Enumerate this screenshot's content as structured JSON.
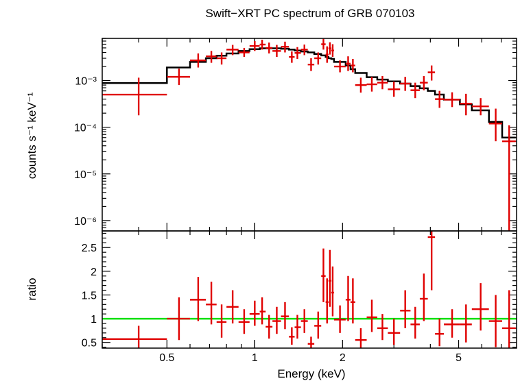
{
  "chart_data": [
    {
      "panel": "spectrum",
      "type": "scatter",
      "title": "Swift−XRT PC spectrum of GRB 070103",
      "ylabel": "counts s⁻¹ keV⁻¹",
      "x_scale": "log",
      "y_scale": "log",
      "xlim": [
        0.3,
        7.9
      ],
      "ylim": [
        6e-07,
        0.008
      ],
      "y_tick_labels": [
        "10⁻³",
        "10⁻⁴",
        "10⁻⁵",
        "10⁻⁶"
      ],
      "y_tick_values": [
        0.001,
        0.0001,
        1e-05,
        1e-06
      ],
      "series": [
        {
          "kind": "data_with_errors",
          "color": "#e00000",
          "points": [
            {
              "x": 0.4,
              "xlo": 0.3,
              "xhi": 0.5,
              "y": 0.0005,
              "ylo": 0.00018,
              "yhi": 0.00115
            },
            {
              "x": 0.55,
              "xlo": 0.5,
              "xhi": 0.6,
              "y": 0.0012,
              "ylo": 0.0008,
              "yhi": 0.0018
            },
            {
              "x": 0.64,
              "xlo": 0.6,
              "xhi": 0.68,
              "y": 0.0027,
              "ylo": 0.0019,
              "yhi": 0.0038
            },
            {
              "x": 0.71,
              "xlo": 0.68,
              "xhi": 0.74,
              "y": 0.0033,
              "ylo": 0.0024,
              "yhi": 0.0043
            },
            {
              "x": 0.77,
              "xlo": 0.74,
              "xhi": 0.8,
              "y": 0.003,
              "ylo": 0.0022,
              "yhi": 0.004
            },
            {
              "x": 0.84,
              "xlo": 0.8,
              "xhi": 0.88,
              "y": 0.0046,
              "ylo": 0.0035,
              "yhi": 0.0058
            },
            {
              "x": 0.92,
              "xlo": 0.88,
              "xhi": 0.96,
              "y": 0.004,
              "ylo": 0.0032,
              "yhi": 0.005
            },
            {
              "x": 1.0,
              "xlo": 0.96,
              "xhi": 1.04,
              "y": 0.0055,
              "ylo": 0.0043,
              "yhi": 0.007
            },
            {
              "x": 1.06,
              "xlo": 1.04,
              "xhi": 1.09,
              "y": 0.0059,
              "ylo": 0.0046,
              "yhi": 0.0075
            },
            {
              "x": 1.12,
              "xlo": 1.09,
              "xhi": 1.15,
              "y": 0.005,
              "ylo": 0.0038,
              "yhi": 0.0065
            },
            {
              "x": 1.19,
              "xlo": 1.15,
              "xhi": 1.23,
              "y": 0.0043,
              "ylo": 0.0032,
              "yhi": 0.0058
            },
            {
              "x": 1.27,
              "xlo": 1.23,
              "xhi": 1.31,
              "y": 0.0053,
              "ylo": 0.004,
              "yhi": 0.0068
            },
            {
              "x": 1.34,
              "xlo": 1.31,
              "xhi": 1.37,
              "y": 0.0032,
              "ylo": 0.0024,
              "yhi": 0.0042
            },
            {
              "x": 1.4,
              "xlo": 1.37,
              "xhi": 1.44,
              "y": 0.0039,
              "ylo": 0.0029,
              "yhi": 0.0052
            },
            {
              "x": 1.48,
              "xlo": 1.44,
              "xhi": 1.52,
              "y": 0.0046,
              "ylo": 0.0035,
              "yhi": 0.0059
            },
            {
              "x": 1.56,
              "xlo": 1.52,
              "xhi": 1.6,
              "y": 0.0022,
              "ylo": 0.0016,
              "yhi": 0.003
            },
            {
              "x": 1.65,
              "xlo": 1.6,
              "xhi": 1.69,
              "y": 0.003,
              "ylo": 0.0022,
              "yhi": 0.004
            },
            {
              "x": 1.72,
              "xlo": 1.69,
              "xhi": 1.75,
              "y": 0.006,
              "ylo": 0.0046,
              "yhi": 0.0078
            },
            {
              "x": 1.77,
              "xlo": 1.75,
              "xhi": 1.79,
              "y": 0.0036,
              "ylo": 0.0024,
              "yhi": 0.0054
            },
            {
              "x": 1.81,
              "xlo": 1.79,
              "xhi": 1.83,
              "y": 0.0049,
              "ylo": 0.0036,
              "yhi": 0.0066
            },
            {
              "x": 1.85,
              "xlo": 1.83,
              "xhi": 1.87,
              "y": 0.0044,
              "ylo": 0.0032,
              "yhi": 0.006
            },
            {
              "x": 1.96,
              "xlo": 1.87,
              "xhi": 2.05,
              "y": 0.002,
              "ylo": 0.0015,
              "yhi": 0.0027
            },
            {
              "x": 2.09,
              "xlo": 2.05,
              "xhi": 2.13,
              "y": 0.0023,
              "ylo": 0.0016,
              "yhi": 0.0033
            },
            {
              "x": 2.17,
              "xlo": 2.13,
              "xhi": 2.21,
              "y": 0.0021,
              "ylo": 0.0015,
              "yhi": 0.0029
            },
            {
              "x": 2.31,
              "xlo": 2.21,
              "xhi": 2.42,
              "y": 0.0008,
              "ylo": 0.00055,
              "yhi": 0.00115
            },
            {
              "x": 2.52,
              "xlo": 2.42,
              "xhi": 2.63,
              "y": 0.00083,
              "ylo": 0.00058,
              "yhi": 0.0012
            },
            {
              "x": 2.74,
              "xlo": 2.63,
              "xhi": 2.86,
              "y": 0.0009,
              "ylo": 0.00065,
              "yhi": 0.00125
            },
            {
              "x": 3.0,
              "xlo": 2.86,
              "xhi": 3.15,
              "y": 0.00065,
              "ylo": 0.00045,
              "yhi": 0.00095
            },
            {
              "x": 3.28,
              "xlo": 3.15,
              "xhi": 3.42,
              "y": 0.00086,
              "ylo": 0.0006,
              "yhi": 0.0012
            },
            {
              "x": 3.55,
              "xlo": 3.42,
              "xhi": 3.68,
              "y": 0.00062,
              "ylo": 0.00042,
              "yhi": 0.0009
            },
            {
              "x": 3.8,
              "xlo": 3.68,
              "xhi": 3.92,
              "y": 0.0009,
              "ylo": 0.00062,
              "yhi": 0.00125
            },
            {
              "x": 4.04,
              "xlo": 3.92,
              "xhi": 4.15,
              "y": 0.0015,
              "ylo": 0.001,
              "yhi": 0.0021
            },
            {
              "x": 4.3,
              "xlo": 4.15,
              "xhi": 4.45,
              "y": 0.0004,
              "ylo": 0.00026,
              "yhi": 0.0006
            },
            {
              "x": 4.75,
              "xlo": 4.45,
              "xhi": 5.05,
              "y": 0.00039,
              "ylo": 0.00027,
              "yhi": 0.00056
            },
            {
              "x": 5.3,
              "xlo": 5.05,
              "xhi": 5.55,
              "y": 0.00032,
              "ylo": 0.00018,
              "yhi": 0.00052
            },
            {
              "x": 5.95,
              "xlo": 5.55,
              "xhi": 6.35,
              "y": 0.00028,
              "ylo": 0.00018,
              "yhi": 0.00042
            },
            {
              "x": 6.7,
              "xlo": 6.35,
              "xhi": 7.05,
              "y": 0.00012,
              "ylo": 5e-05,
              "yhi": 0.00025
            },
            {
              "x": 7.45,
              "xlo": 7.05,
              "xhi": 7.85,
              "y": 5e-05,
              "ylo": 1e-07,
              "yhi": 0.00011
            }
          ]
        },
        {
          "kind": "model_step",
          "color": "#000000",
          "edges": [
            0.3,
            0.5,
            0.6,
            0.68,
            0.74,
            0.8,
            0.88,
            0.96,
            1.04,
            1.09,
            1.15,
            1.23,
            1.31,
            1.37,
            1.44,
            1.52,
            1.6,
            1.69,
            1.75,
            1.79,
            1.83,
            1.87,
            2.05,
            2.13,
            2.21,
            2.42,
            2.63,
            2.86,
            3.15,
            3.42,
            3.68,
            3.92,
            4.15,
            4.45,
            5.05,
            5.55,
            6.35,
            7.05,
            7.85
          ],
          "values": [
            0.00088,
            0.0019,
            0.0025,
            0.003,
            0.0034,
            0.0038,
            0.0043,
            0.0047,
            0.0049,
            0.0049,
            0.0049,
            0.0048,
            0.0046,
            0.0044,
            0.0042,
            0.004,
            0.0037,
            0.00345,
            0.0032,
            0.003,
            0.0029,
            0.0025,
            0.0021,
            0.00175,
            0.00145,
            0.00118,
            0.00105,
            0.00096,
            0.00086,
            0.00076,
            0.00068,
            0.0006,
            0.0005,
            0.00039,
            0.00031,
            0.00023,
            0.00013,
            6e-05
          ]
        }
      ]
    },
    {
      "panel": "ratio",
      "type": "scatter",
      "xlabel": "Energy (keV)",
      "ylabel": "ratio",
      "x_scale": "log",
      "xlim": [
        0.3,
        7.9
      ],
      "ylim": [
        0.38,
        2.85
      ],
      "x_tick_labels": [
        "0.5",
        "1",
        "2",
        "5"
      ],
      "x_tick_values": [
        0.5,
        1,
        2,
        5
      ],
      "y_tick_labels": [
        "0.5",
        "1",
        "1.5",
        "2",
        "2.5"
      ],
      "y_tick_values": [
        0.5,
        1,
        1.5,
        2,
        2.5
      ],
      "reference_line": {
        "y": 1,
        "color": "#00e000"
      },
      "series": [
        {
          "kind": "ratio_with_errors",
          "color": "#e00000",
          "points": [
            {
              "x": 0.4,
              "xlo": 0.3,
              "xhi": 0.5,
              "y": 0.57,
              "ylo": 0.38,
              "yhi": 0.85
            },
            {
              "x": 0.55,
              "xlo": 0.5,
              "xhi": 0.6,
              "y": 1.0,
              "ylo": 0.55,
              "yhi": 1.45
            },
            {
              "x": 0.64,
              "xlo": 0.6,
              "xhi": 0.68,
              "y": 1.4,
              "ylo": 0.95,
              "yhi": 1.88
            },
            {
              "x": 0.71,
              "xlo": 0.68,
              "xhi": 0.74,
              "y": 1.3,
              "ylo": 0.88,
              "yhi": 1.78
            },
            {
              "x": 0.77,
              "xlo": 0.74,
              "xhi": 0.8,
              "y": 0.93,
              "ylo": 0.6,
              "yhi": 1.3
            },
            {
              "x": 0.84,
              "xlo": 0.8,
              "xhi": 0.88,
              "y": 1.25,
              "ylo": 0.9,
              "yhi": 1.6
            },
            {
              "x": 0.92,
              "xlo": 0.88,
              "xhi": 0.96,
              "y": 0.93,
              "ylo": 0.68,
              "yhi": 1.2
            },
            {
              "x": 1.0,
              "xlo": 0.96,
              "xhi": 1.04,
              "y": 1.1,
              "ylo": 0.85,
              "yhi": 1.38
            },
            {
              "x": 1.06,
              "xlo": 1.04,
              "xhi": 1.09,
              "y": 1.15,
              "ylo": 0.88,
              "yhi": 1.45
            },
            {
              "x": 1.12,
              "xlo": 1.09,
              "xhi": 1.15,
              "y": 0.83,
              "ylo": 0.58,
              "yhi": 1.08
            },
            {
              "x": 1.19,
              "xlo": 1.15,
              "xhi": 1.23,
              "y": 0.95,
              "ylo": 0.68,
              "yhi": 1.25
            },
            {
              "x": 1.27,
              "xlo": 1.23,
              "xhi": 1.31,
              "y": 1.05,
              "ylo": 0.78,
              "yhi": 1.35
            },
            {
              "x": 1.34,
              "xlo": 1.31,
              "xhi": 1.37,
              "y": 0.62,
              "ylo": 0.45,
              "yhi": 0.82
            },
            {
              "x": 1.4,
              "xlo": 1.37,
              "xhi": 1.44,
              "y": 0.82,
              "ylo": 0.58,
              "yhi": 1.08
            },
            {
              "x": 1.48,
              "xlo": 1.44,
              "xhi": 1.52,
              "y": 0.95,
              "ylo": 0.7,
              "yhi": 1.2
            },
            {
              "x": 1.56,
              "xlo": 1.52,
              "xhi": 1.6,
              "y": 0.47,
              "ylo": 0.38,
              "yhi": 0.62
            },
            {
              "x": 1.65,
              "xlo": 1.6,
              "xhi": 1.69,
              "y": 0.85,
              "ylo": 0.58,
              "yhi": 1.15
            },
            {
              "x": 1.72,
              "xlo": 1.69,
              "xhi": 1.75,
              "y": 1.9,
              "ylo": 1.35,
              "yhi": 2.48
            },
            {
              "x": 1.77,
              "xlo": 1.75,
              "xhi": 1.79,
              "y": 1.35,
              "ylo": 0.9,
              "yhi": 1.85
            },
            {
              "x": 1.81,
              "xlo": 1.79,
              "xhi": 1.83,
              "y": 1.8,
              "ylo": 1.25,
              "yhi": 2.45
            },
            {
              "x": 1.85,
              "xlo": 1.83,
              "xhi": 1.87,
              "y": 1.55,
              "ylo": 1.05,
              "yhi": 2.1
            },
            {
              "x": 1.96,
              "xlo": 1.87,
              "xhi": 2.05,
              "y": 0.98,
              "ylo": 0.7,
              "yhi": 1.28
            },
            {
              "x": 2.09,
              "xlo": 2.05,
              "xhi": 2.13,
              "y": 1.4,
              "ylo": 0.95,
              "yhi": 1.9
            },
            {
              "x": 2.17,
              "xlo": 2.13,
              "xhi": 2.21,
              "y": 1.35,
              "ylo": 0.9,
              "yhi": 1.85
            },
            {
              "x": 2.31,
              "xlo": 2.21,
              "xhi": 2.42,
              "y": 0.55,
              "ylo": 0.38,
              "yhi": 0.8
            },
            {
              "x": 2.52,
              "xlo": 2.42,
              "xhi": 2.63,
              "y": 1.03,
              "ylo": 0.72,
              "yhi": 1.4
            },
            {
              "x": 2.74,
              "xlo": 2.63,
              "xhi": 2.86,
              "y": 0.8,
              "ylo": 0.55,
              "yhi": 1.1
            },
            {
              "x": 3.0,
              "xlo": 2.86,
              "xhi": 3.15,
              "y": 0.7,
              "ylo": 0.45,
              "yhi": 1.0
            },
            {
              "x": 3.28,
              "xlo": 3.15,
              "xhi": 3.42,
              "y": 1.17,
              "ylo": 0.8,
              "yhi": 1.6
            },
            {
              "x": 3.55,
              "xlo": 3.42,
              "xhi": 3.68,
              "y": 0.88,
              "ylo": 0.58,
              "yhi": 1.25
            },
            {
              "x": 3.8,
              "xlo": 3.68,
              "xhi": 3.92,
              "y": 1.42,
              "ylo": 0.95,
              "yhi": 1.95
            },
            {
              "x": 4.04,
              "xlo": 3.92,
              "xhi": 4.15,
              "y": 2.72,
              "ylo": 1.6,
              "yhi": 3.2
            },
            {
              "x": 4.3,
              "xlo": 4.15,
              "xhi": 4.45,
              "y": 0.68,
              "ylo": 0.42,
              "yhi": 1.0
            },
            {
              "x": 4.75,
              "xlo": 4.45,
              "xhi": 5.05,
              "y": 0.88,
              "ylo": 0.6,
              "yhi": 1.2
            },
            {
              "x": 5.3,
              "xlo": 5.05,
              "xhi": 5.55,
              "y": 0.88,
              "ylo": 0.5,
              "yhi": 1.3
            },
            {
              "x": 5.95,
              "xlo": 5.55,
              "xhi": 6.35,
              "y": 1.2,
              "ylo": 0.75,
              "yhi": 1.75
            },
            {
              "x": 6.7,
              "xlo": 6.35,
              "xhi": 7.05,
              "y": 0.95,
              "ylo": 0.4,
              "yhi": 1.5
            },
            {
              "x": 7.45,
              "xlo": 7.05,
              "xhi": 7.85,
              "y": 0.8,
              "ylo": 0.38,
              "yhi": 1.6
            }
          ]
        }
      ]
    }
  ]
}
